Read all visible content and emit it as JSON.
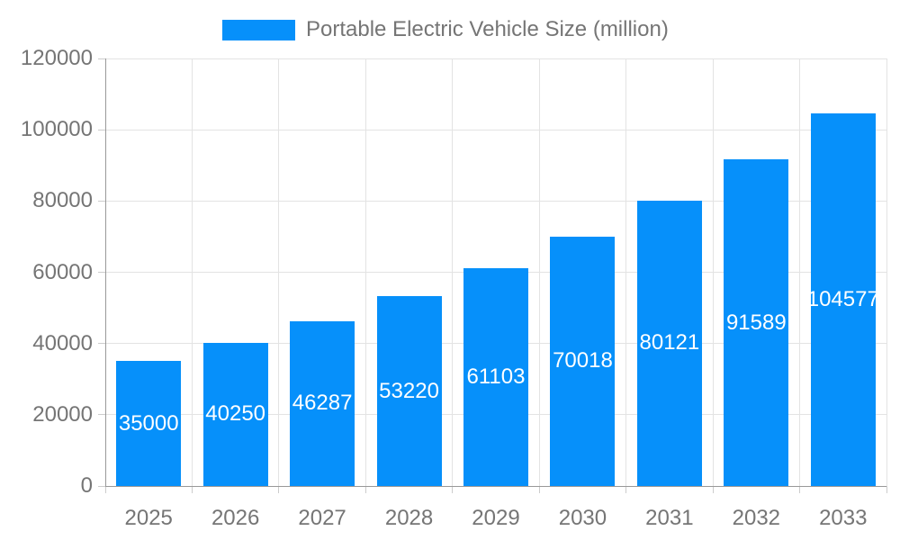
{
  "legend": {
    "label": "Portable Electric Vehicle Size (million)",
    "swatch_color": "#0690fa"
  },
  "chart_data": {
    "type": "bar",
    "title": "Portable Electric Vehicle Size (million)",
    "categories": [
      "2025",
      "2026",
      "2027",
      "2028",
      "2029",
      "2030",
      "2031",
      "2032",
      "2033"
    ],
    "values": [
      35000,
      40250,
      46287,
      53220,
      61103,
      70018,
      80121,
      91589,
      104577
    ],
    "xlabel": "",
    "ylabel": "",
    "ylim": [
      0,
      120000
    ],
    "yticks": [
      0,
      20000,
      40000,
      60000,
      80000,
      100000,
      120000
    ],
    "bar_color": "#0690fa",
    "value_label_color": "#ffffff",
    "axis_label_color": "#757575",
    "grid_color": "#e3e3e3",
    "axis_line_color": "#999999",
    "grid": true,
    "legend_position": "top",
    "value_labels": "inside-center"
  }
}
